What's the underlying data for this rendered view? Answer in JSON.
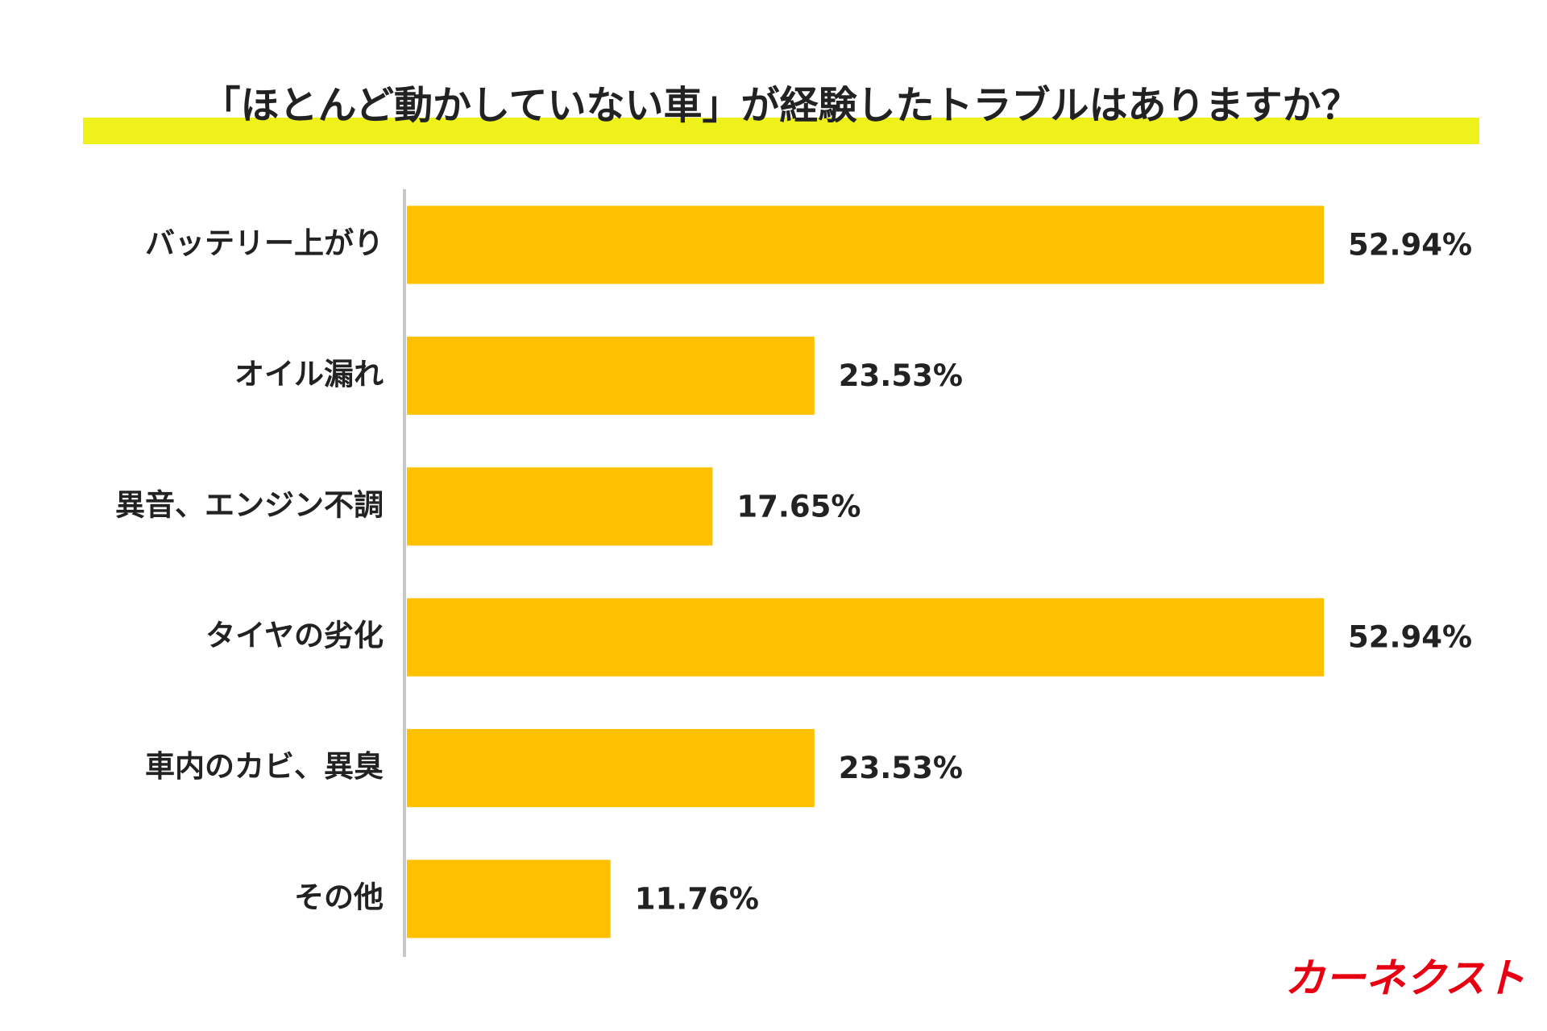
{
  "chart_data": {
    "type": "barh",
    "title": "「ほとんど動かしていない車」が経験したトラブルはありますか？",
    "categories": [
      "バッテリー上がり",
      "オイル漏れ",
      "異音、エンジン不調",
      "タイヤの劣化",
      "車内のカビ、異臭",
      "その他"
    ],
    "values": [
      52.94,
      23.53,
      17.65,
      52.94,
      23.53,
      11.76
    ],
    "value_labels": [
      "52.94%",
      "23.53%",
      "17.65%",
      "52.94%",
      "23.53%",
      "11.76%"
    ],
    "color": "#FFC000",
    "logo": "カーネクスト"
  }
}
